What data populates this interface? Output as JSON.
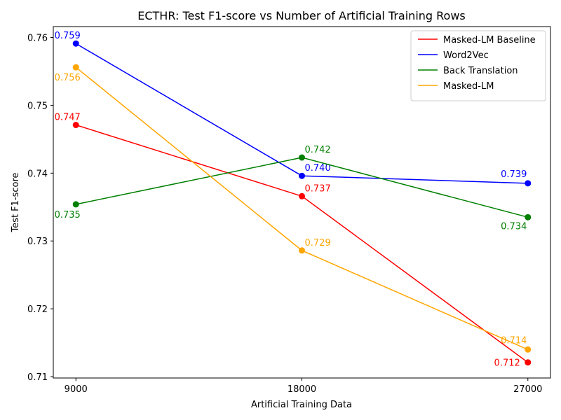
{
  "chart_data": {
    "type": "line",
    "title": "ECTHR: Test F1-score vs Number of Artificial Training Rows",
    "xlabel": "Artificial Training Data",
    "ylabel": "Test F1-score",
    "x": [
      9000,
      18000,
      27000
    ],
    "x_tick_labels": [
      "9000",
      "18000",
      "27000"
    ],
    "xlim": [
      8100,
      27900
    ],
    "ylim": [
      0.7098,
      0.7616
    ],
    "y_ticks": [
      0.71,
      0.72,
      0.73,
      0.74,
      0.75,
      0.76
    ],
    "y_tick_labels": [
      "0.71",
      "0.72",
      "0.73",
      "0.74",
      "0.75",
      "0.76"
    ],
    "grid": false,
    "legend_position": "top-right",
    "series": [
      {
        "name": "Masked-LM Baseline",
        "color": "#ff0000",
        "values": [
          0.7471,
          0.7366,
          0.7121
        ],
        "labels": [
          "0.747",
          "0.737",
          "0.712"
        ],
        "label_anchor": [
          "above",
          "right",
          "left"
        ]
      },
      {
        "name": "Word2Vec",
        "color": "#0000ff",
        "values": [
          0.7591,
          0.7396,
          0.7385
        ],
        "labels": [
          "0.759",
          "0.740",
          "0.739"
        ],
        "label_anchor": [
          "above",
          "right",
          "above-left"
        ]
      },
      {
        "name": "Back Translation",
        "color": "#008000",
        "values": [
          0.7354,
          0.7423,
          0.7335
        ],
        "labels": [
          "0.735",
          "0.742",
          "0.734"
        ],
        "label_anchor": [
          "below",
          "right",
          "below-left"
        ]
      },
      {
        "name": "Masked-LM",
        "color": "#ffa500",
        "values": [
          0.7556,
          0.7286,
          0.714
        ],
        "labels": [
          "0.756",
          "0.729",
          "0.714"
        ],
        "label_anchor": [
          "below",
          "right",
          "above-left"
        ]
      }
    ]
  }
}
